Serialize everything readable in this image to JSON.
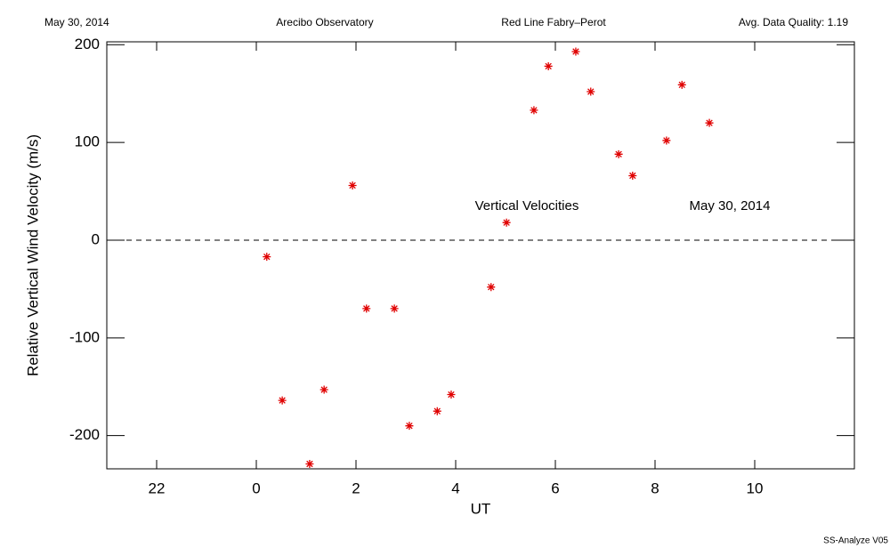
{
  "chart_data": {
    "type": "scatter",
    "header": [
      "May 30, 2014",
      "Arecibo Observatory",
      "Red Line Fabry–Perot",
      "Avg. Data Quality: 1.19"
    ],
    "xlabel": "UT",
    "ylabel": "Relative Vertical Wind Velocity (m/s)",
    "annotations": [
      "Vertical Velocities",
      "May 30, 2014"
    ],
    "footer": "SS-Analyze V05",
    "xlim": [
      -3,
      12
    ],
    "ylim": [
      -234,
      203
    ],
    "xticks": [
      {
        "value": -2,
        "label": "22"
      },
      0,
      2,
      4,
      6,
      8,
      10
    ],
    "yticks": [
      -200,
      -100,
      0,
      100,
      200
    ],
    "hline": 0,
    "color": "#e00000",
    "x": [
      0.21,
      0.52,
      1.07,
      1.36,
      1.93,
      2.21,
      2.77,
      3.07,
      3.63,
      3.91,
      4.71,
      5.02,
      5.57,
      5.86,
      6.41,
      6.71,
      7.27,
      7.55,
      8.23,
      8.54,
      9.09
    ],
    "values": [
      -17,
      -164,
      -229,
      -153,
      56,
      -70,
      -70,
      -190,
      -175,
      -158,
      -48,
      18,
      133,
      178,
      193,
      152,
      88,
      66,
      102,
      159,
      120
    ]
  }
}
